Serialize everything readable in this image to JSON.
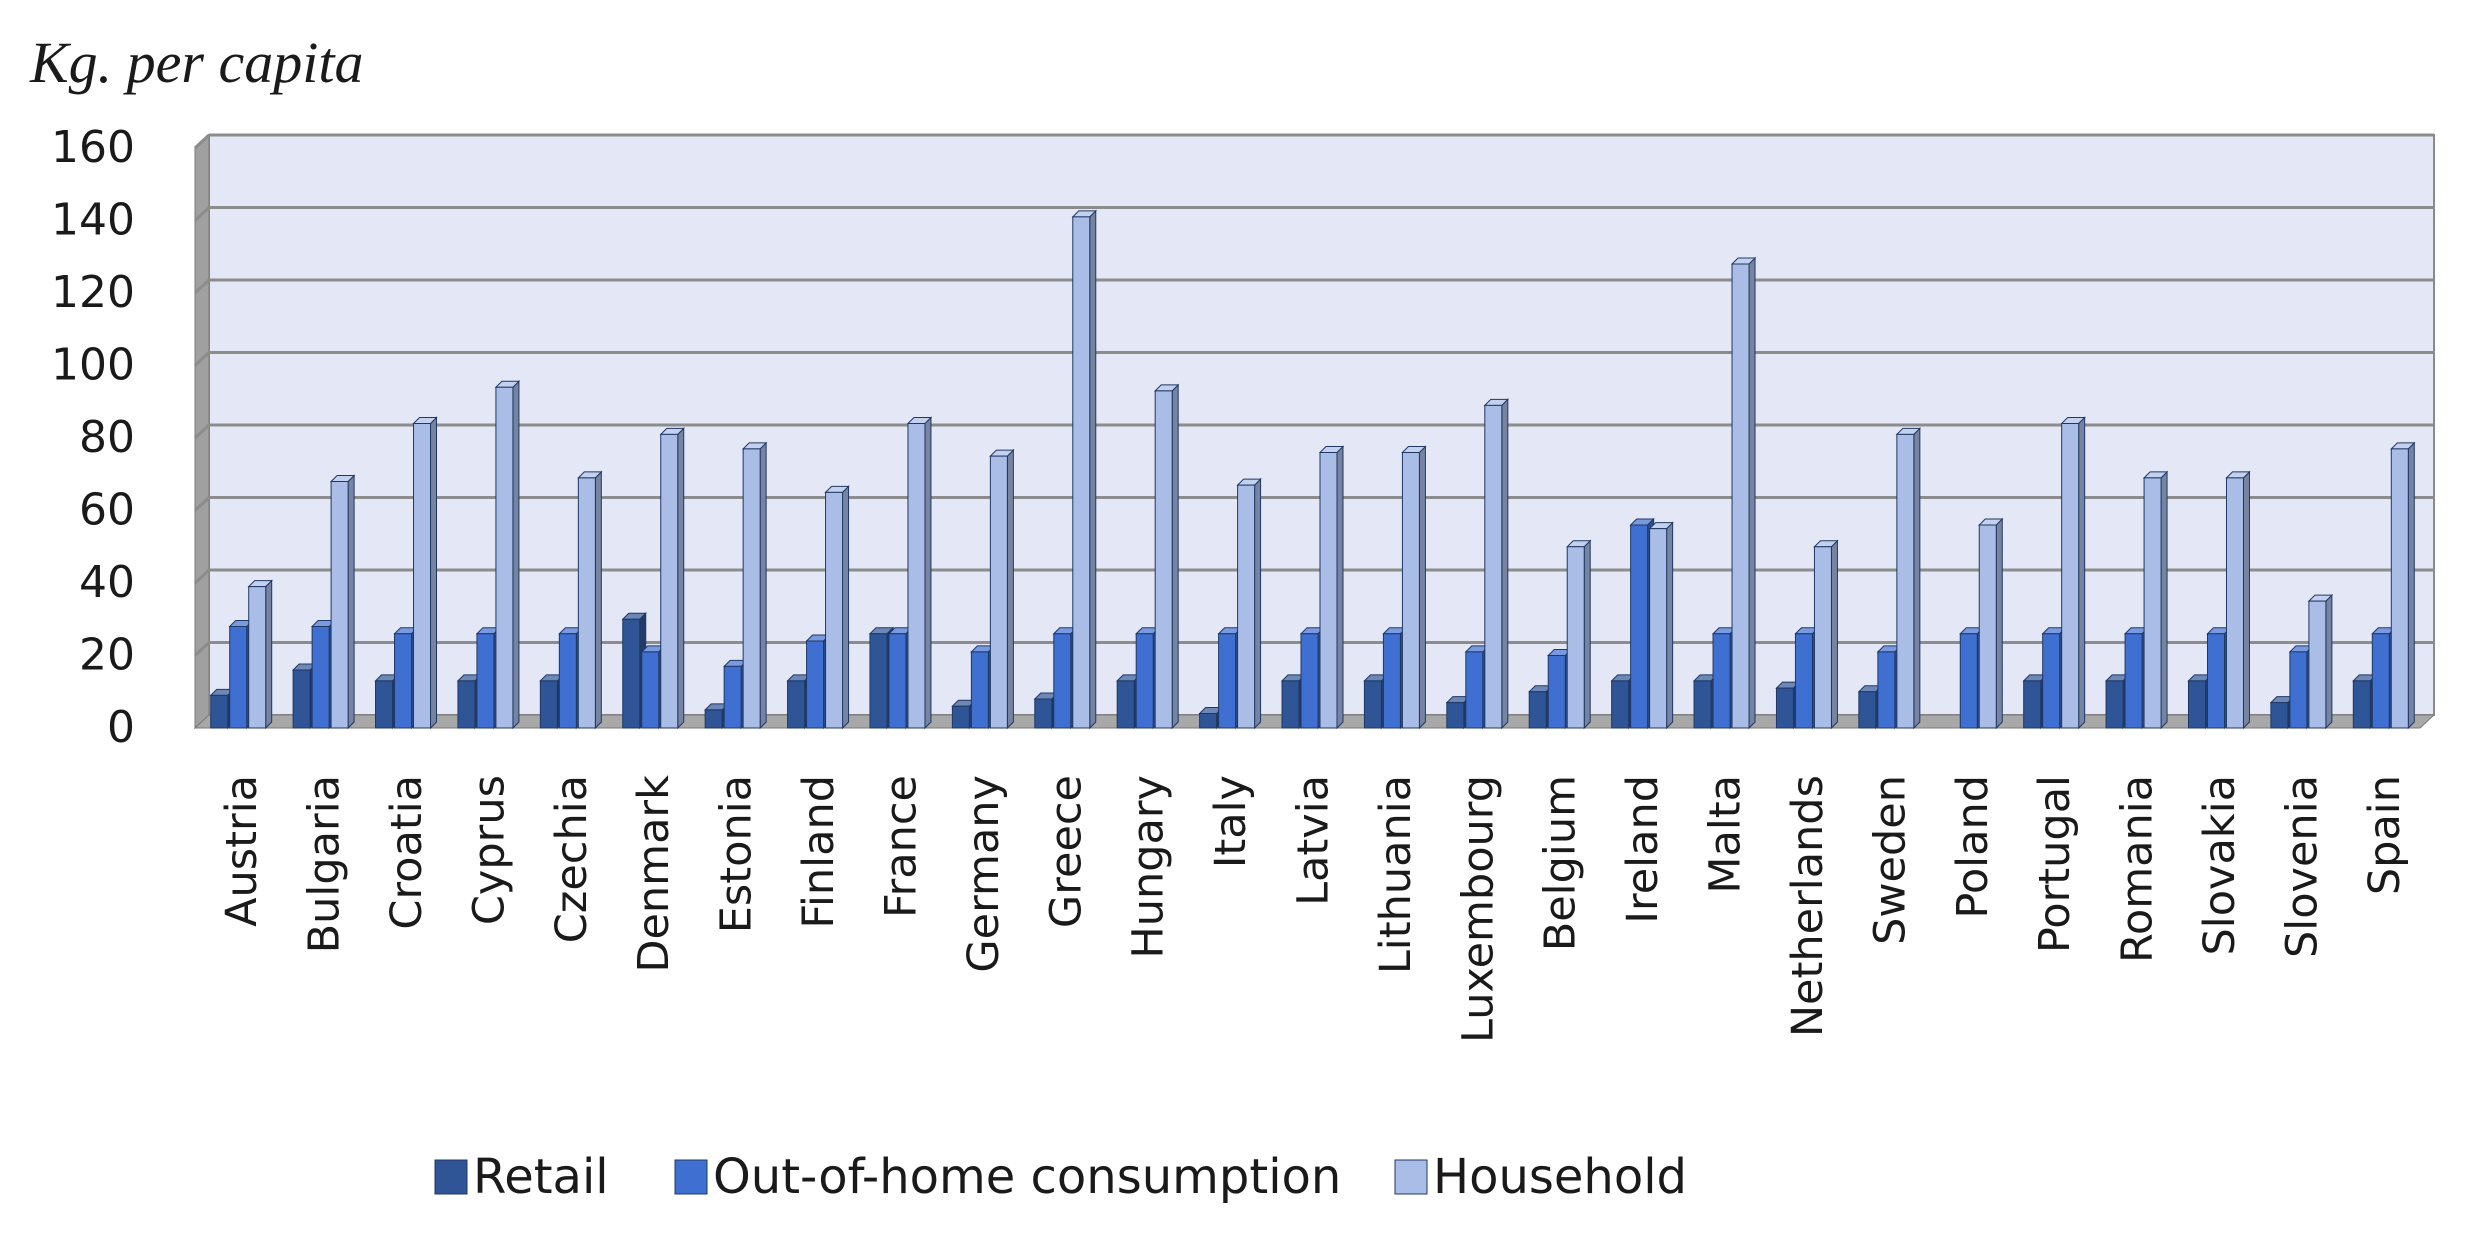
{
  "chart_data": {
    "type": "bar",
    "title": "",
    "ylabel": "Kg. per capita",
    "xlabel": "",
    "ylim": [
      0,
      160
    ],
    "yticks": [
      0,
      20,
      40,
      60,
      80,
      100,
      120,
      140,
      160
    ],
    "grid": true,
    "legend_position": "bottom",
    "categories": [
      "Austria",
      "Bulgaria",
      "Croatia",
      "Cyprus",
      "Czechia",
      "Denmark",
      "Estonia",
      "Finland",
      "France",
      "Germany",
      "Greece",
      "Hungary",
      "Italy",
      "Latvia",
      "Lithuania",
      "Luxembourg",
      "Belgium",
      "Ireland",
      "Malta",
      "Netherlands",
      "Sweden",
      "Poland",
      "Portugal",
      "Romania",
      "Slovakia",
      "Slovenia",
      "Spain"
    ],
    "series": [
      {
        "name": "Retail",
        "color": "#2f5597",
        "values": [
          9,
          16,
          13,
          13,
          13,
          30,
          5,
          13,
          26,
          6,
          8,
          13,
          4,
          13,
          13,
          7,
          10,
          13,
          13,
          11,
          10,
          0,
          13,
          13,
          13,
          7,
          13
        ]
      },
      {
        "name": "Out-of-home consumption",
        "color": "#3f6fd1",
        "values": [
          28,
          28,
          26,
          26,
          26,
          21,
          17,
          24,
          26,
          21,
          26,
          26,
          26,
          26,
          26,
          21,
          20,
          56,
          26,
          26,
          21,
          26,
          26,
          26,
          26,
          21,
          26
        ]
      },
      {
        "name": "Household",
        "color": "#a9bde6",
        "values": [
          39,
          68,
          84,
          94,
          69,
          81,
          77,
          65,
          84,
          75,
          141,
          93,
          67,
          76,
          76,
          89,
          50,
          55,
          128,
          50,
          81,
          56,
          84,
          69,
          69,
          35,
          77
        ]
      }
    ]
  }
}
